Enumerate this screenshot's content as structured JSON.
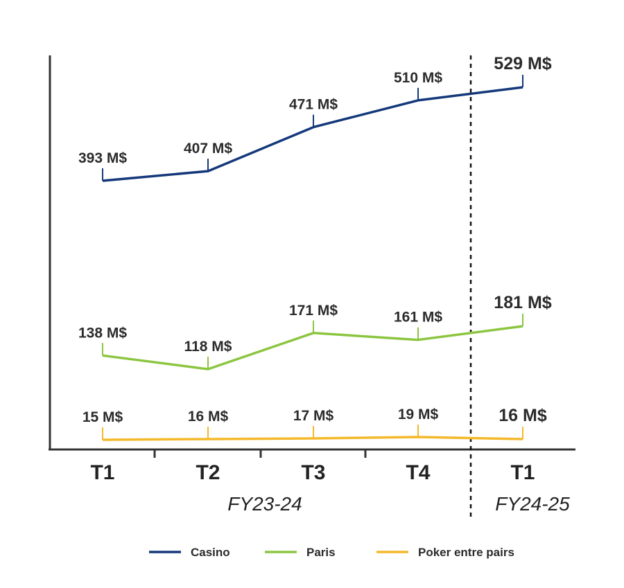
{
  "chart_data": {
    "type": "line",
    "categories": [
      "T1",
      "T2",
      "T3",
      "T4",
      "T1"
    ],
    "groups": [
      {
        "label": "FY23-24",
        "categories": [
          "T1",
          "T2",
          "T3",
          "T4"
        ]
      },
      {
        "label": "FY24-25",
        "categories": [
          "T1"
        ]
      }
    ],
    "series": [
      {
        "name": "Casino",
        "color": "#14387a",
        "values": [
          393,
          407,
          471,
          510,
          529
        ],
        "labels": [
          "393 M$",
          "407 M$",
          "471 M$",
          "510 M$",
          "529 M$"
        ]
      },
      {
        "name": "Paris",
        "color": "#8cc540",
        "values": [
          138,
          118,
          171,
          161,
          181
        ],
        "labels": [
          "138 M$",
          "118 M$",
          "171 M$",
          "161 M$",
          "181 M$"
        ]
      },
      {
        "name": "Poker entre pairs",
        "color": "#f4b92a",
        "values": [
          15,
          16,
          17,
          19,
          16
        ],
        "labels": [
          "15 M$",
          "16 M$",
          "17 M$",
          "19 M$",
          "16 M$"
        ]
      }
    ],
    "title": "",
    "xlabel": "",
    "ylabel": "",
    "grid": false,
    "legend_position": "bottom",
    "divider": "dashed line between FY23-24 and FY24-25"
  }
}
